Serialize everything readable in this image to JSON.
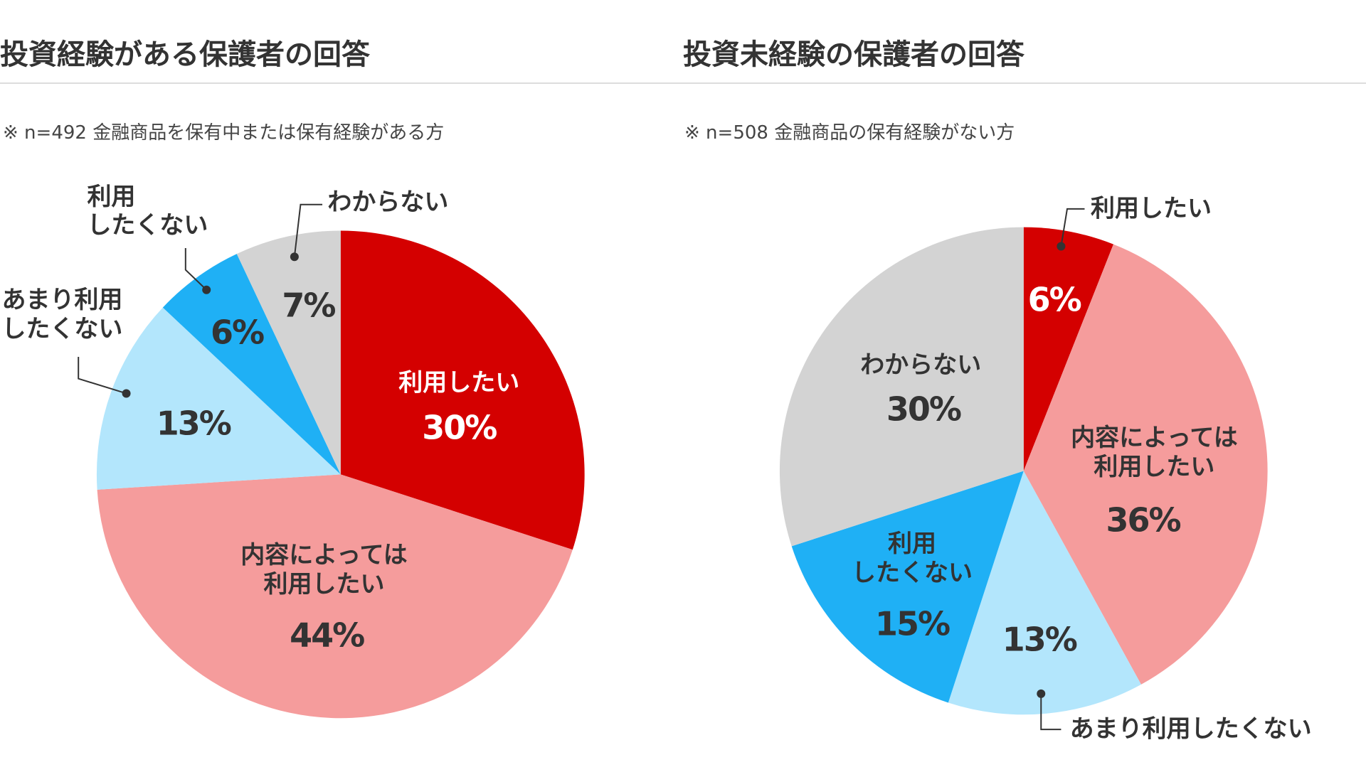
{
  "chart_data": [
    {
      "type": "pie",
      "title": "投資経験がある保護者の回答",
      "subtitle": "※ n=492 金融商品を保有中または保有経験がある方",
      "categories": [
        "利用したい",
        "内容によっては\n利用したい",
        "あまり利用\nしたくない",
        "利用\nしたくない",
        "わからない"
      ],
      "values": [
        30,
        44,
        13,
        6,
        7
      ],
      "value_labels": [
        "30%",
        "44%",
        "13%",
        "6%",
        "7%"
      ],
      "colors": [
        "#d40000",
        "#f59c9c",
        "#b3e6fc",
        "#1fb0f5",
        "#d3d3d3"
      ]
    },
    {
      "type": "pie",
      "title": "投資未経験の保護者の回答",
      "subtitle": "※ n=508 金融商品の保有経験がない方",
      "categories": [
        "利用したい",
        "内容によっては\n利用したい",
        "あまり利用したくない",
        "利用\nしたくない",
        "わからない"
      ],
      "values": [
        6,
        36,
        13,
        15,
        30
      ],
      "value_labels": [
        "6%",
        "36%",
        "13%",
        "15%",
        "30%"
      ],
      "colors": [
        "#d40000",
        "#f59c9c",
        "#b3e6fc",
        "#1fb0f5",
        "#d3d3d3"
      ]
    }
  ]
}
